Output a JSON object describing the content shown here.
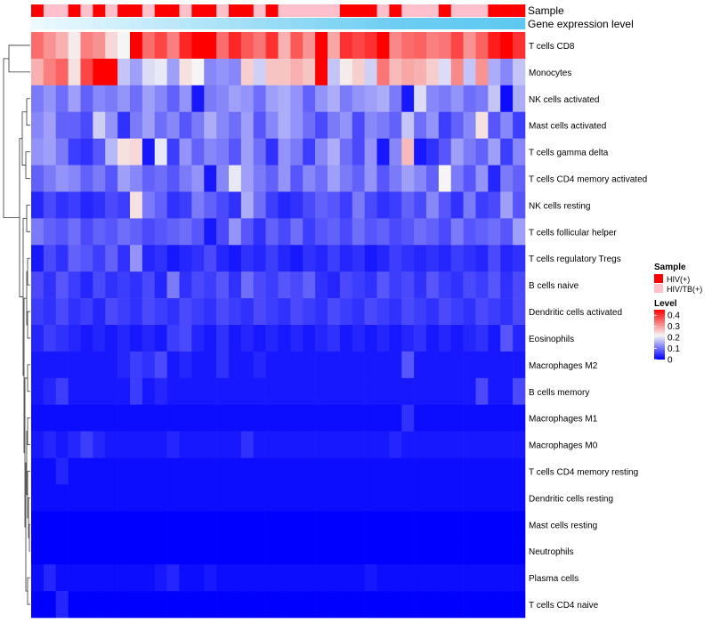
{
  "chart_data": {
    "type": "heatmap",
    "title": "",
    "annotation_tracks": [
      {
        "name": "Sample"
      },
      {
        "name": "Gene expression level"
      }
    ],
    "sample_groups": [
      "HIV(+)",
      "HIV/TB(+)",
      "HIV/TB(+)",
      "HIV(+)",
      "HIV/TB(+)",
      "HIV(+)",
      "HIV/TB(+)",
      "HIV(+)",
      "HIV(+)",
      "HIV/TB(+)",
      "HIV(+)",
      "HIV(+)",
      "HIV/TB(+)",
      "HIV(+)",
      "HIV(+)",
      "HIV/TB(+)",
      "HIV(+)",
      "HIV(+)",
      "HIV/TB(+)",
      "HIV(+)",
      "HIV/TB(+)",
      "HIV/TB(+)",
      "HIV/TB(+)",
      "HIV/TB(+)",
      "HIV/TB(+)",
      "HIV(+)",
      "HIV(+)",
      "HIV(+)",
      "HIV/TB(+)",
      "HIV(+)",
      "HIV/TB(+)",
      "HIV/TB(+)",
      "HIV/TB(+)",
      "HIV(+)",
      "HIV/TB(+)",
      "HIV/TB(+)",
      "HIV/TB(+)",
      "HIV(+)",
      "HIV(+)",
      "HIV(+)"
    ],
    "gene_expression_level": [
      0.03,
      0.06,
      0.09,
      0.12,
      0.15,
      0.18,
      0.21,
      0.24,
      0.27,
      0.3,
      0.33,
      0.36,
      0.39,
      0.42,
      0.45,
      0.48,
      0.51,
      0.54,
      0.57,
      0.6,
      0.63,
      0.66,
      0.69,
      0.72,
      0.75,
      0.78,
      0.81,
      0.84,
      0.87,
      0.9,
      0.91,
      0.92,
      0.93,
      0.94,
      0.95,
      0.96,
      0.97,
      0.98,
      0.99,
      1.0
    ],
    "rows": [
      "T cells CD8",
      "Monocytes",
      "NK cells activated",
      "Mast cells activated",
      "T cells gamma delta",
      "T cells CD4 memory activated",
      "NK cells resting",
      "T cells follicular helper",
      "T cells regulatory  Tregs",
      "B cells naive",
      "Dendritic cells activated",
      "Eosinophils",
      "Macrophages M2",
      "B cells memory",
      "Macrophages M1",
      "Macrophages M0",
      "T cells CD4 memory resting",
      "Dendritic cells resting",
      "Mast cells resting",
      "Neutrophils",
      "Plasma cells",
      "T cells CD4 naive"
    ],
    "values": [
      [
        0.34,
        0.3,
        0.27,
        0.21,
        0.32,
        0.3,
        0.23,
        0.2,
        0.45,
        0.34,
        0.38,
        0.32,
        0.41,
        0.45,
        0.45,
        0.34,
        0.41,
        0.36,
        0.33,
        0.4,
        0.27,
        0.36,
        0.3,
        0.45,
        0.28,
        0.4,
        0.38,
        0.4,
        0.45,
        0.31,
        0.34,
        0.35,
        0.32,
        0.33,
        0.38,
        0.3,
        0.35,
        0.42,
        0.45,
        0.4
      ],
      [
        0.27,
        0.32,
        0.35,
        0.22,
        0.38,
        0.45,
        0.45,
        0.16,
        0.13,
        0.18,
        0.19,
        0.13,
        0.22,
        0.2,
        0.11,
        0.12,
        0.11,
        0.24,
        0.17,
        0.25,
        0.25,
        0.27,
        0.25,
        0.45,
        0.16,
        0.21,
        0.24,
        0.17,
        0.33,
        0.26,
        0.28,
        0.27,
        0.24,
        0.18,
        0.31,
        0.16,
        0.3,
        0.14,
        0.11,
        0.16
      ],
      [
        0.1,
        0.12,
        0.09,
        0.13,
        0.08,
        0.11,
        0.1,
        0.12,
        0.09,
        0.13,
        0.11,
        0.08,
        0.12,
        0.02,
        0.1,
        0.11,
        0.13,
        0.12,
        0.09,
        0.13,
        0.14,
        0.12,
        0.08,
        0.12,
        0.14,
        0.1,
        0.12,
        0.13,
        0.14,
        0.1,
        0.02,
        0.18,
        0.11,
        0.1,
        0.12,
        0.09,
        0.1,
        0.16,
        0.01,
        0.14
      ],
      [
        0.11,
        0.13,
        0.08,
        0.08,
        0.06,
        0.17,
        0.12,
        0.04,
        0.1,
        0.13,
        0.09,
        0.11,
        0.07,
        0.1,
        0.14,
        0.11,
        0.09,
        0.13,
        0.07,
        0.11,
        0.14,
        0.12,
        0.09,
        0.06,
        0.1,
        0.12,
        0.06,
        0.11,
        0.1,
        0.08,
        0.16,
        0.09,
        0.12,
        0.05,
        0.08,
        0.11,
        0.22,
        0.07,
        0.11,
        0.05
      ],
      [
        0.12,
        0.13,
        0.1,
        0.05,
        0.04,
        0.07,
        0.15,
        0.22,
        0.23,
        0.02,
        0.19,
        0.05,
        0.12,
        0.08,
        0.11,
        0.1,
        0.07,
        0.13,
        0.09,
        0.04,
        0.12,
        0.1,
        0.05,
        0.11,
        0.14,
        0.09,
        0.06,
        0.12,
        0.02,
        0.11,
        0.26,
        0.02,
        0.04,
        0.07,
        0.13,
        0.1,
        0.08,
        0.13,
        0.05,
        0.11
      ],
      [
        0.08,
        0.1,
        0.12,
        0.11,
        0.08,
        0.1,
        0.07,
        0.13,
        0.11,
        0.08,
        0.09,
        0.07,
        0.1,
        0.12,
        0.02,
        0.11,
        0.19,
        0.13,
        0.1,
        0.08,
        0.12,
        0.07,
        0.11,
        0.09,
        0.13,
        0.1,
        0.08,
        0.12,
        0.07,
        0.1,
        0.13,
        0.11,
        0.08,
        0.2,
        0.1,
        0.07,
        0.12,
        0.03,
        0.1,
        0.08
      ],
      [
        0.03,
        0.06,
        0.04,
        0.05,
        0.03,
        0.04,
        0.06,
        0.05,
        0.22,
        0.1,
        0.08,
        0.04,
        0.05,
        0.1,
        0.08,
        0.06,
        0.04,
        0.14,
        0.09,
        0.05,
        0.03,
        0.04,
        0.06,
        0.08,
        0.07,
        0.05,
        0.1,
        0.06,
        0.04,
        0.05,
        0.08,
        0.06,
        0.11,
        0.07,
        0.04,
        0.1,
        0.05,
        0.06,
        0.13,
        0.07
      ],
      [
        0.1,
        0.08,
        0.07,
        0.09,
        0.06,
        0.08,
        0.07,
        0.09,
        0.08,
        0.06,
        0.07,
        0.08,
        0.09,
        0.07,
        0.02,
        0.06,
        0.12,
        0.07,
        0.04,
        0.08,
        0.06,
        0.09,
        0.05,
        0.07,
        0.08,
        0.06,
        0.09,
        0.07,
        0.08,
        0.06,
        0.07,
        0.09,
        0.08,
        0.06,
        0.1,
        0.07,
        0.08,
        0.09,
        0.07,
        0.13
      ],
      [
        0.02,
        0.06,
        0.04,
        0.08,
        0.07,
        0.05,
        0.08,
        0.04,
        0.12,
        0.03,
        0.04,
        0.02,
        0.03,
        0.04,
        0.06,
        0.03,
        0.02,
        0.04,
        0.03,
        0.05,
        0.03,
        0.02,
        0.04,
        0.03,
        0.05,
        0.03,
        0.04,
        0.02,
        0.03,
        0.05,
        0.04,
        0.03,
        0.04,
        0.03,
        0.05,
        0.04,
        0.03,
        0.06,
        0.03,
        0.04
      ],
      [
        0.06,
        0.04,
        0.07,
        0.05,
        0.03,
        0.06,
        0.04,
        0.05,
        0.04,
        0.06,
        0.03,
        0.1,
        0.04,
        0.06,
        0.05,
        0.07,
        0.04,
        0.09,
        0.06,
        0.05,
        0.07,
        0.06,
        0.08,
        0.04,
        0.03,
        0.06,
        0.05,
        0.04,
        0.07,
        0.05,
        0.06,
        0.04,
        0.07,
        0.05,
        0.04,
        0.06,
        0.05,
        0.07,
        0.04,
        0.06
      ],
      [
        0.05,
        0.04,
        0.06,
        0.04,
        0.05,
        0.03,
        0.06,
        0.05,
        0.04,
        0.06,
        0.05,
        0.04,
        0.06,
        0.05,
        0.04,
        0.06,
        0.05,
        0.04,
        0.06,
        0.05,
        0.04,
        0.06,
        0.05,
        0.04,
        0.06,
        0.05,
        0.04,
        0.06,
        0.05,
        0.04,
        0.06,
        0.05,
        0.04,
        0.06,
        0.05,
        0.04,
        0.06,
        0.05,
        0.04,
        0.06
      ],
      [
        0.03,
        0.05,
        0.04,
        0.03,
        0.02,
        0.03,
        0.02,
        0.03,
        0.02,
        0.03,
        0.02,
        0.05,
        0.06,
        0.03,
        0.02,
        0.04,
        0.02,
        0.03,
        0.02,
        0.03,
        0.02,
        0.03,
        0.02,
        0.03,
        0.04,
        0.02,
        0.03,
        0.02,
        0.03,
        0.02,
        0.03,
        0.04,
        0.02,
        0.03,
        0.02,
        0.03,
        0.04,
        0.02,
        0.07,
        0.03
      ],
      [
        0.02,
        0.02,
        0.02,
        0.02,
        0.02,
        0.02,
        0.02,
        0.03,
        0.05,
        0.04,
        0.06,
        0.02,
        0.03,
        0.02,
        0.02,
        0.04,
        0.02,
        0.02,
        0.03,
        0.02,
        0.02,
        0.02,
        0.02,
        0.02,
        0.02,
        0.02,
        0.02,
        0.02,
        0.02,
        0.02,
        0.07,
        0.02,
        0.02,
        0.02,
        0.02,
        0.02,
        0.02,
        0.02,
        0.02,
        0.02
      ],
      [
        0.02,
        0.03,
        0.05,
        0.02,
        0.02,
        0.02,
        0.02,
        0.02,
        0.05,
        0.02,
        0.03,
        0.02,
        0.02,
        0.02,
        0.02,
        0.02,
        0.02,
        0.02,
        0.02,
        0.02,
        0.02,
        0.02,
        0.02,
        0.02,
        0.02,
        0.02,
        0.02,
        0.02,
        0.02,
        0.02,
        0.02,
        0.02,
        0.02,
        0.02,
        0.02,
        0.02,
        0.06,
        0.02,
        0.02,
        0.06
      ],
      [
        0.01,
        0.01,
        0.01,
        0.01,
        0.01,
        0.01,
        0.01,
        0.01,
        0.01,
        0.01,
        0.01,
        0.01,
        0.01,
        0.01,
        0.01,
        0.01,
        0.01,
        0.01,
        0.01,
        0.01,
        0.01,
        0.01,
        0.01,
        0.01,
        0.01,
        0.01,
        0.01,
        0.01,
        0.01,
        0.01,
        0.04,
        0.01,
        0.01,
        0.01,
        0.01,
        0.01,
        0.01,
        0.01,
        0.01,
        0.01
      ],
      [
        0.02,
        0.03,
        0.02,
        0.03,
        0.05,
        0.03,
        0.02,
        0.02,
        0.02,
        0.02,
        0.02,
        0.03,
        0.02,
        0.02,
        0.02,
        0.02,
        0.02,
        0.04,
        0.02,
        0.02,
        0.02,
        0.02,
        0.02,
        0.02,
        0.02,
        0.02,
        0.02,
        0.02,
        0.02,
        0.03,
        0.02,
        0.02,
        0.02,
        0.02,
        0.02,
        0.02,
        0.02,
        0.02,
        0.02,
        0.02
      ],
      [
        0.01,
        0.01,
        0.03,
        0.01,
        0.01,
        0.01,
        0.01,
        0.01,
        0.01,
        0.01,
        0.01,
        0.01,
        0.01,
        0.01,
        0.01,
        0.01,
        0.01,
        0.01,
        0.01,
        0.01,
        0.01,
        0.01,
        0.01,
        0.01,
        0.01,
        0.01,
        0.01,
        0.01,
        0.01,
        0.01,
        0.01,
        0.01,
        0.01,
        0.01,
        0.01,
        0.01,
        0.01,
        0.01,
        0.01,
        0.01
      ],
      [
        0.01,
        0.01,
        0.01,
        0.01,
        0.01,
        0.01,
        0.01,
        0.01,
        0.01,
        0.01,
        0.01,
        0.01,
        0.01,
        0.01,
        0.01,
        0.01,
        0.01,
        0.01,
        0.01,
        0.01,
        0.01,
        0.01,
        0.01,
        0.01,
        0.01,
        0.01,
        0.01,
        0.01,
        0.01,
        0.01,
        0.01,
        0.01,
        0.01,
        0.01,
        0.01,
        0.01,
        0.01,
        0.01,
        0.01,
        0.01
      ],
      [
        0.0,
        0.0,
        0.0,
        0.0,
        0.0,
        0.0,
        0.0,
        0.0,
        0.0,
        0.0,
        0.0,
        0.0,
        0.0,
        0.0,
        0.0,
        0.0,
        0.0,
        0.0,
        0.0,
        0.0,
        0.0,
        0.0,
        0.0,
        0.0,
        0.0,
        0.0,
        0.0,
        0.0,
        0.0,
        0.0,
        0.0,
        0.0,
        0.0,
        0.0,
        0.0,
        0.0,
        0.0,
        0.0,
        0.0,
        0.0
      ],
      [
        0.0,
        0.0,
        0.0,
        0.0,
        0.0,
        0.0,
        0.0,
        0.0,
        0.0,
        0.0,
        0.0,
        0.0,
        0.0,
        0.0,
        0.0,
        0.0,
        0.0,
        0.0,
        0.0,
        0.0,
        0.0,
        0.0,
        0.0,
        0.0,
        0.0,
        0.0,
        0.0,
        0.0,
        0.0,
        0.0,
        0.0,
        0.0,
        0.0,
        0.0,
        0.0,
        0.0,
        0.0,
        0.0,
        0.0,
        0.0
      ],
      [
        0.01,
        0.03,
        0.01,
        0.01,
        0.01,
        0.01,
        0.01,
        0.01,
        0.01,
        0.01,
        0.02,
        0.03,
        0.01,
        0.01,
        0.02,
        0.01,
        0.01,
        0.01,
        0.01,
        0.01,
        0.01,
        0.01,
        0.01,
        0.01,
        0.01,
        0.01,
        0.01,
        0.02,
        0.01,
        0.01,
        0.01,
        0.01,
        0.01,
        0.01,
        0.01,
        0.01,
        0.01,
        0.01,
        0.01,
        0.01
      ],
      [
        0.0,
        0.0,
        0.03,
        0.0,
        0.0,
        0.0,
        0.0,
        0.0,
        0.0,
        0.0,
        0.0,
        0.0,
        0.0,
        0.0,
        0.0,
        0.0,
        0.0,
        0.0,
        0.0,
        0.0,
        0.0,
        0.0,
        0.0,
        0.0,
        0.0,
        0.0,
        0.0,
        0.0,
        0.0,
        0.0,
        0.0,
        0.0,
        0.0,
        0.0,
        0.0,
        0.0,
        0.0,
        0.0,
        0.0,
        0.0
      ]
    ],
    "color_scale": {
      "min": 0,
      "mid": 0.2,
      "max": 0.45,
      "low_color": "#0000ff",
      "mid_color": "#f5f5f5",
      "high_color": "#ff0000"
    },
    "legend": {
      "placement": "right",
      "sample": {
        "title": "Sample",
        "entries": [
          {
            "label": "HIV(+)",
            "color": "#ff0000"
          },
          {
            "label": "HIV/TB(+)",
            "color": "#ffc0cb"
          }
        ]
      },
      "level": {
        "title": "Level",
        "ticks": [
          "0.4",
          "0.3",
          "0.2",
          "0.1",
          "0"
        ],
        "tick_values": [
          0.4,
          0.3,
          0.2,
          0.1,
          0
        ]
      }
    },
    "row_dendrogram": true
  }
}
